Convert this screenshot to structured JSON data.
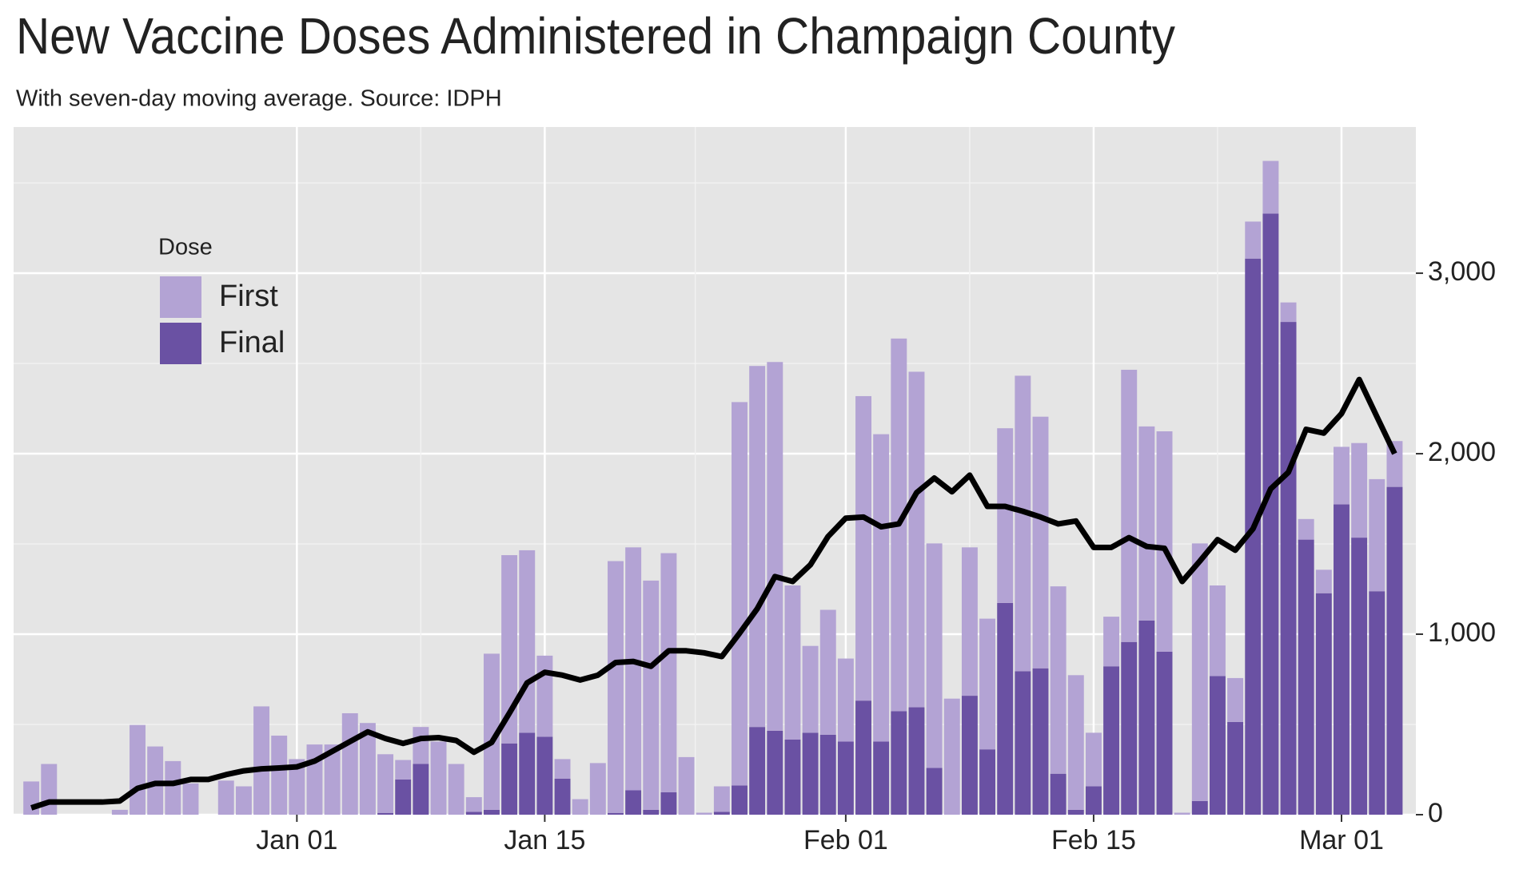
{
  "chart_data": {
    "type": "stacked_bar_line",
    "title": "New Vaccine Doses Administered in Champaign County",
    "subtitle": "With seven-day moving average. Source: IDPH",
    "legend_title": "Dose",
    "x": [
      "Dec 17",
      "Dec 18",
      "Dec 19",
      "Dec 20",
      "Dec 21",
      "Dec 22",
      "Dec 23",
      "Dec 24",
      "Dec 25",
      "Dec 26",
      "Dec 27",
      "Dec 28",
      "Dec 29",
      "Dec 30",
      "Dec 31",
      "Jan 01",
      "Jan 02",
      "Jan 03",
      "Jan 04",
      "Jan 05",
      "Jan 06",
      "Jan 07",
      "Jan 08",
      "Jan 09",
      "Jan 10",
      "Jan 11",
      "Jan 12",
      "Jan 13",
      "Jan 14",
      "Jan 15",
      "Jan 16",
      "Jan 17",
      "Jan 18",
      "Jan 19",
      "Jan 20",
      "Jan 21",
      "Jan 22",
      "Jan 23",
      "Jan 24",
      "Jan 25",
      "Jan 26",
      "Jan 27",
      "Jan 28",
      "Jan 29",
      "Jan 30",
      "Jan 31",
      "Feb 01",
      "Feb 02",
      "Feb 03",
      "Feb 04",
      "Feb 05",
      "Feb 06",
      "Feb 07",
      "Feb 08",
      "Feb 09",
      "Feb 10",
      "Feb 11",
      "Feb 12",
      "Feb 13",
      "Feb 14",
      "Feb 15",
      "Feb 16",
      "Feb 17",
      "Feb 18",
      "Feb 19",
      "Feb 20",
      "Feb 21",
      "Feb 22",
      "Feb 23",
      "Feb 24",
      "Feb 25",
      "Feb 26",
      "Feb 27",
      "Feb 28",
      "Mar 01",
      "Mar 02",
      "Mar 03",
      "Mar 04"
    ],
    "series": [
      {
        "name": "First",
        "color": "#b3a3d4",
        "values": [
          184,
          281,
          0,
          0,
          0,
          27,
          497,
          378,
          297,
          173,
          0,
          189,
          157,
          600,
          438,
          308,
          389,
          389,
          562,
          508,
          325,
          108,
          205,
          405,
          281,
          81,
          865,
          1043,
          1011,
          449,
          108,
          86,
          286,
          1395,
          1346,
          1270,
          1325,
          319,
          11,
          141,
          2124,
          2000,
          2043,
          854,
          481,
          692,
          460,
          1687,
          1703,
          2065,
          1859,
          1244,
          643,
          822,
          724,
          968,
          1637,
          1394,
          1038,
          746,
          297,
          275,
          1508,
          1075,
          1221,
          11,
          1427,
          502,
          243,
          205,
          292,
          108,
          114,
          130,
          319,
          524,
          621,
          254
        ]
      },
      {
        "name": "Final",
        "color": "#6a51a3",
        "values": [
          0,
          0,
          0,
          0,
          0,
          0,
          0,
          0,
          0,
          0,
          0,
          0,
          0,
          0,
          0,
          0,
          0,
          0,
          0,
          0,
          10,
          195,
          281,
          0,
          0,
          16,
          27,
          395,
          454,
          432,
          200,
          0,
          0,
          10,
          135,
          27,
          124,
          0,
          0,
          16,
          162,
          486,
          465,
          416,
          454,
          443,
          405,
          632,
          405,
          573,
          595,
          259,
          0,
          659,
          362,
          1173,
          795,
          811,
          227,
          27,
          157,
          822,
          957,
          1076,
          903,
          0,
          76,
          768,
          514,
          3081,
          3330,
          2730,
          1524,
          1227,
          1719,
          1535,
          1238,
          1816
        ]
      }
    ],
    "moving_average": {
      "color": "#000000",
      "values": [
        38,
        70,
        70,
        70,
        70,
        76,
        146,
        173,
        173,
        195,
        195,
        222,
        243,
        254,
        259,
        265,
        297,
        351,
        405,
        459,
        422,
        395,
        422,
        427,
        411,
        346,
        400,
        562,
        730,
        789,
        773,
        746,
        773,
        843,
        849,
        822,
        908,
        908,
        897,
        876,
        1005,
        1141,
        1319,
        1292,
        1384,
        1541,
        1643,
        1649,
        1595,
        1611,
        1784,
        1865,
        1789,
        1881,
        1708,
        1708,
        1681,
        1649,
        1611,
        1627,
        1481,
        1481,
        1535,
        1486,
        1476,
        1292,
        1405,
        1524,
        1465,
        1584,
        1805,
        1897,
        2135,
        2114,
        2222,
        2411,
        2205,
        2000
      ]
    },
    "xticks": [
      "Jan 01",
      "Jan 15",
      "Feb 01",
      "Feb 15",
      "Mar 01"
    ],
    "ylim": [
      0,
      3810
    ],
    "yticks": [
      0,
      {
        "value": 1000,
        "label": "1,000"
      },
      {
        "value": 2000,
        "label": "2,000"
      },
      {
        "value": 3000,
        "label": "3,000"
      }
    ],
    "grid": true
  }
}
